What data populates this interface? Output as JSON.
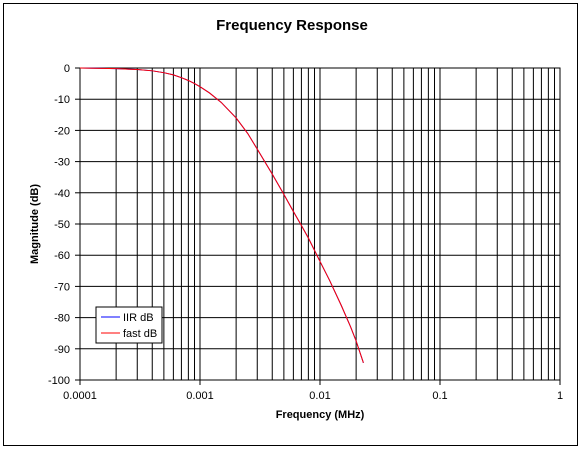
{
  "chart_data": {
    "type": "line",
    "title": "Frequency Response",
    "xlabel": "Frequency (MHz)",
    "ylabel": "Magnitude (dB)",
    "x_scale": "log",
    "xlim": [
      0.0001,
      1
    ],
    "ylim": [
      -100,
      0
    ],
    "grid": true,
    "legend_position": "bottom-left",
    "x_tick_labels": [
      "0.0001",
      "0.001",
      "0.01",
      "0.1",
      "1"
    ],
    "y_tick_labels": [
      "0",
      "-10",
      "-20",
      "-30",
      "-40",
      "-50",
      "-60",
      "-70",
      "-80",
      "-90",
      "-100"
    ],
    "series": [
      {
        "name": "IIR dB",
        "color": "#0000ff",
        "x": [
          0.0001,
          0.0002,
          0.0003,
          0.0004,
          0.0005,
          0.0006,
          0.0007,
          0.0008,
          0.0009,
          0.001,
          0.0012,
          0.0015,
          0.002,
          0.0025,
          0.003,
          0.004,
          0.005,
          0.006,
          0.007,
          0.008,
          0.01,
          0.012,
          0.015,
          0.018,
          0.02,
          0.023
        ],
        "values": [
          0,
          -0.2,
          -0.5,
          -0.9,
          -1.5,
          -2.2,
          -3.1,
          -4.0,
          -5.0,
          -6.0,
          -8.0,
          -11.0,
          -16.0,
          -21.0,
          -26.0,
          -34.0,
          -40.5,
          -46.0,
          -50.5,
          -54.5,
          -62.0,
          -68.0,
          -76.0,
          -83.0,
          -87.5,
          -94.5
        ]
      },
      {
        "name": "fast dB",
        "color": "#ff0000",
        "x": [
          0.0001,
          0.0002,
          0.0003,
          0.0004,
          0.0005,
          0.0006,
          0.0007,
          0.0008,
          0.0009,
          0.001,
          0.0012,
          0.0015,
          0.002,
          0.0025,
          0.003,
          0.004,
          0.005,
          0.006,
          0.007,
          0.008,
          0.01,
          0.012,
          0.015,
          0.018,
          0.02,
          0.023
        ],
        "values": [
          0,
          -0.2,
          -0.5,
          -0.9,
          -1.5,
          -2.2,
          -3.1,
          -4.0,
          -5.0,
          -6.0,
          -8.0,
          -11.0,
          -16.0,
          -21.0,
          -26.0,
          -34.0,
          -40.5,
          -46.0,
          -50.5,
          -54.5,
          -62.0,
          -68.0,
          -76.0,
          -83.0,
          -87.5,
          -94.5
        ]
      }
    ]
  }
}
